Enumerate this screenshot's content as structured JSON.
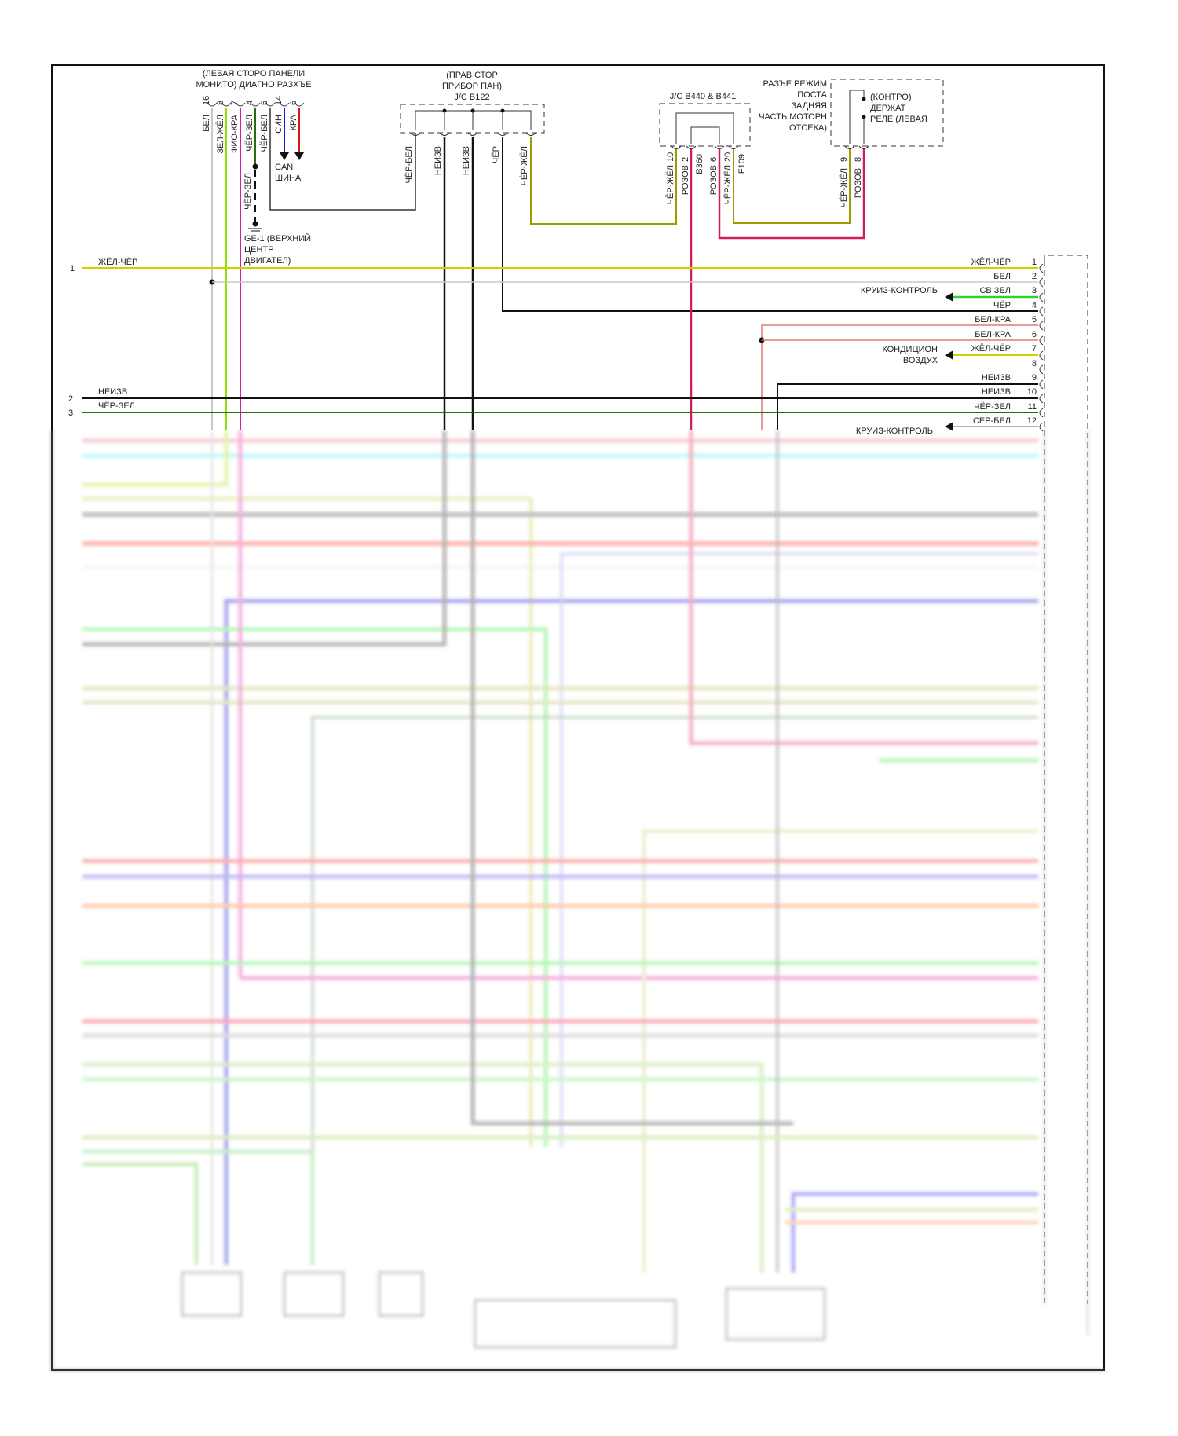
{
  "left_connector": {
    "title_lines": [
      "(ЛЕВАЯ СТОРО ПАНЕЛИ",
      "МОНИТО) ДИАГНО РАЗХЪЕ"
    ],
    "pins": [
      {
        "num": "16",
        "label": "БЕЛ"
      },
      {
        "num": "8",
        "label": "ЗЕЛ-ЖЁЛ"
      },
      {
        "num": "7",
        "label": "ФИО-КРА"
      },
      {
        "num": "4",
        "label": "ЧЁР-ЗЕЛ"
      },
      {
        "num": "5",
        "label": "ЧЁР-БЕЛ"
      },
      {
        "num": "14",
        "label": "СИН"
      },
      {
        "num": "6",
        "label": "КРА"
      }
    ],
    "ground_wire_label": "ЧЁР-ЗЕЛ",
    "can_label": [
      "CAN",
      "ШИНА"
    ],
    "ground_label": [
      "GE-1 (ВЕРХНИЙ",
      "ЦЕНТР",
      "ДВИГАТЕЛ)"
    ]
  },
  "jc_b122": {
    "title_lines": [
      "(ПРАВ СТОР",
      "ПРИБОР ПАН)",
      "J/C B122"
    ],
    "pins": [
      "ЧЁР-БЕЛ",
      "НЕИЗВ",
      "НЕИЗВ",
      "ЧЁР",
      "ЧЁР-ЖЁЛ"
    ]
  },
  "jc_b440": {
    "title": "J/C B440 & B441",
    "pins": [
      {
        "num": "10",
        "label": "ЧЁР-ЖЁЛ"
      },
      {
        "num": "2",
        "label": "РОЗОВ",
        "extra": "B360"
      },
      {
        "num": "6",
        "label": "РОЗОВ"
      },
      {
        "num": "20",
        "label": "ЧЁР-ЖЁЛ",
        "extra": "F109"
      }
    ]
  },
  "relay": {
    "connector_lines": [
      "РАЗЪЕ РЕЖИМ",
      "ПОСТА",
      "ЗАДНЯЯ",
      "ЧАСТЬ МОТОРН",
      "ОТСЕКА)"
    ],
    "relay_lines": [
      "(КОНТРО)",
      "ДЕРЖАТ",
      "РЕЛЕ (ЛЕВАЯ"
    ],
    "pins": [
      {
        "num": "9",
        "label": "ЧЁР-ЖЁЛ"
      },
      {
        "num": "8",
        "label": "РОЗОВ"
      }
    ]
  },
  "left_wires": [
    {
      "num": "1",
      "label": "ЖЁЛ-ЧЁР"
    },
    {
      "num": "2",
      "label": "НЕИЗВ"
    },
    {
      "num": "3",
      "label": "ЧЁР-ЗЕЛ"
    }
  ],
  "right_connector": {
    "pins": [
      {
        "num": "1",
        "label": "ЖЁЛ-ЧЁР"
      },
      {
        "num": "2",
        "label": "БЕЛ"
      },
      {
        "num": "3",
        "label": "СВ ЗЕЛ"
      },
      {
        "num": "4",
        "label": "ЧЁР"
      },
      {
        "num": "5",
        "label": "БЕЛ-КРА"
      },
      {
        "num": "6",
        "label": "БЕЛ-КРА"
      },
      {
        "num": "7",
        "label": "ЖЁЛ-ЧЁР"
      },
      {
        "num": "8",
        "label": ""
      },
      {
        "num": "9",
        "label": "НЕИЗВ"
      },
      {
        "num": "10",
        "label": "НЕИЗВ"
      },
      {
        "num": "11",
        "label": "ЧЁР-ЗЕЛ"
      },
      {
        "num": "12",
        "label": "СЕР-БЕЛ"
      }
    ],
    "destinations": {
      "cruise_1": "КРУИЗ-КОНТРОЛЬ",
      "ac": [
        "КОНДИЦИОН",
        "ВОЗДУХ"
      ],
      "cruise_2": "КРУИЗ-КОНТРОЛЬ"
    }
  },
  "colors": {
    "yellow": "#c8d400",
    "white": "#c8c8c8",
    "green": "#2fd42f",
    "black": "#111111",
    "magenta": "#d81aa8",
    "pink": "#d21c5c",
    "light_red": "#e07a7a",
    "dark_green": "#2d6a12",
    "blue": "#1a1ad0",
    "red": "#d81616",
    "olive": "#9c9c00",
    "gray": "#9a9a9a"
  }
}
